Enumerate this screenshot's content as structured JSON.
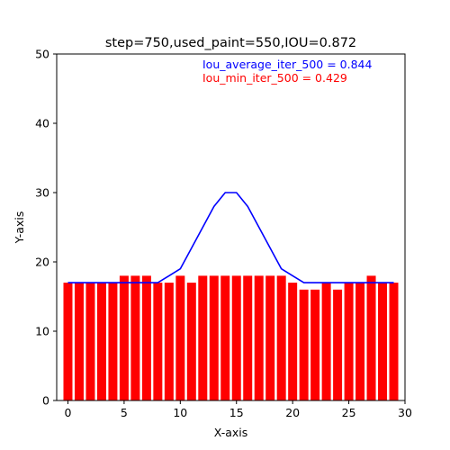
{
  "chart_data": {
    "type": "bar",
    "title": "step=750,used_paint=550,IOU=0.872",
    "xlabel": "X-axis",
    "ylabel": "Y-axis",
    "xlim": [
      -1,
      30
    ],
    "ylim": [
      0,
      50
    ],
    "xticks": [
      0,
      5,
      10,
      15,
      20,
      25,
      30
    ],
    "yticks": [
      0,
      10,
      20,
      30,
      40,
      50
    ],
    "grid": false,
    "colors": {
      "bars": "#ff0000",
      "line": "#0000ff",
      "annotation_average": "#0000ff",
      "annotation_min": "#ff0000"
    },
    "annotations": [
      {
        "text": "Iou_average_iter_500 = 0.844",
        "color": "#0000ff"
      },
      {
        "text": "Iou_min_iter_500 = 0.429",
        "color": "#ff0000"
      }
    ],
    "bars": {
      "x": [
        0,
        1,
        2,
        3,
        4,
        5,
        6,
        7,
        8,
        9,
        10,
        11,
        12,
        13,
        14,
        15,
        16,
        17,
        18,
        19,
        20,
        21,
        22,
        23,
        24,
        25,
        26,
        27,
        28,
        29
      ],
      "values": [
        17,
        17,
        17,
        17,
        17,
        18,
        18,
        18,
        17,
        17,
        18,
        17,
        18,
        18,
        18,
        18,
        18,
        18,
        18,
        18,
        17,
        16,
        16,
        17,
        16,
        17,
        17,
        18,
        17,
        17
      ]
    },
    "line": {
      "x": [
        0,
        1,
        2,
        3,
        4,
        5,
        6,
        7,
        8,
        9,
        10,
        11,
        12,
        13,
        14,
        15,
        16,
        17,
        18,
        19,
        20,
        21,
        22,
        23,
        24,
        25,
        26,
        27,
        28,
        29
      ],
      "y": [
        17,
        17,
        17,
        17,
        17,
        17,
        17,
        17,
        17,
        18,
        19,
        22,
        25,
        28,
        30,
        30,
        28,
        25,
        22,
        19,
        18,
        17,
        17,
        17,
        17,
        17,
        17,
        17,
        17,
        17
      ]
    }
  }
}
